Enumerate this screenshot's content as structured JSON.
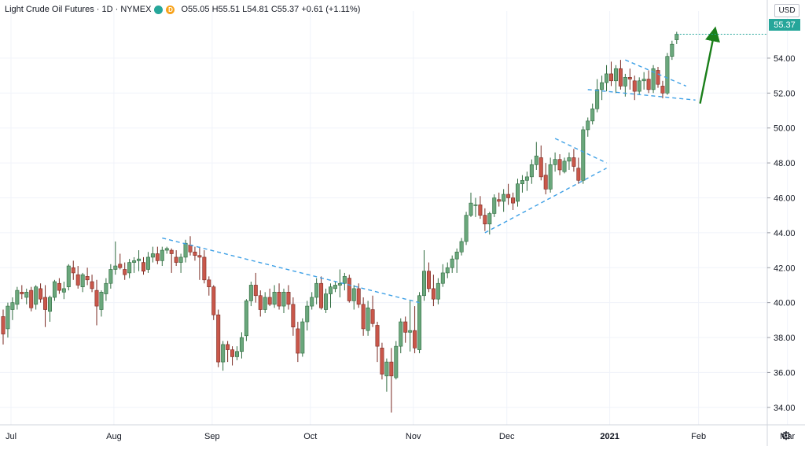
{
  "header": {
    "symbol_title": "Light Crude Oil Futures · 1D · NYMEX",
    "badge_green_label": "",
    "badge_orange_label": "D",
    "ohlc_text": "O55.05 H55.51 L54.81 C55.37 +0.61 (+1.11%)"
  },
  "price_axis": {
    "currency_label": "USD",
    "last_price_label": "55.37"
  },
  "colors": {
    "up": "#26a69a",
    "down": "#ef5350",
    "up_fill": "#6aa77c",
    "down_fill": "#c9574a",
    "trendline": "#3ea0e6",
    "arrow": "#1a7f1a",
    "grid": "#f0f3fa"
  },
  "icons": {
    "settings": "gear-icon"
  },
  "chart_data": {
    "type": "candlestick",
    "title": "Light Crude Oil Futures · 1D · NYMEX",
    "ylim": [
      33.0,
      56.7
    ],
    "y_ticks": [
      34,
      36,
      38,
      40,
      42,
      44,
      46,
      48,
      50,
      52,
      54
    ],
    "y_tick_labels": [
      "34.00",
      "36.00",
      "38.00",
      "40.00",
      "42.00",
      "44.00",
      "46.00",
      "48.00",
      "50.00",
      "52.00",
      "54.00"
    ],
    "x_ticks": [
      {
        "label": "Jul",
        "bar": 0
      },
      {
        "label": "Aug",
        "bar": 22
      },
      {
        "label": "Sep",
        "bar": 43
      },
      {
        "label": "Oct",
        "bar": 64
      },
      {
        "label": "Nov",
        "bar": 86
      },
      {
        "label": "Dec",
        "bar": 106
      },
      {
        "label": "2021",
        "bar": 128
      },
      {
        "label": "Feb",
        "bar": 147
      },
      {
        "label": "Mar",
        "bar": 166
      }
    ],
    "grid": true,
    "last_close": 55.37,
    "ohlc": [
      [
        39.2,
        39.6,
        37.6,
        38.2
      ],
      [
        38.5,
        40.0,
        38.0,
        39.8
      ],
      [
        39.6,
        40.3,
        39.0,
        40.0
      ],
      [
        39.9,
        40.9,
        39.6,
        40.7
      ],
      [
        40.6,
        41.0,
        40.2,
        40.5
      ],
      [
        40.3,
        40.8,
        39.9,
        40.6
      ],
      [
        40.7,
        40.9,
        39.5,
        39.7
      ],
      [
        39.9,
        41.0,
        39.6,
        40.9
      ],
      [
        40.8,
        41.1,
        40.0,
        40.2
      ],
      [
        40.3,
        41.0,
        38.6,
        39.6
      ],
      [
        39.5,
        40.4,
        38.9,
        40.3
      ],
      [
        40.3,
        41.3,
        40.1,
        41.2
      ],
      [
        41.1,
        41.4,
        40.5,
        40.7
      ],
      [
        40.6,
        41.2,
        40.2,
        40.8
      ],
      [
        40.9,
        42.2,
        40.7,
        42.1
      ],
      [
        42.0,
        42.4,
        41.3,
        41.7
      ],
      [
        41.6,
        42.1,
        40.8,
        41.0
      ],
      [
        40.9,
        41.7,
        40.6,
        41.6
      ],
      [
        41.5,
        42.0,
        41.0,
        41.3
      ],
      [
        41.2,
        41.6,
        40.6,
        40.8
      ],
      [
        40.7,
        41.3,
        38.7,
        39.8
      ],
      [
        39.6,
        40.7,
        39.2,
        40.6
      ],
      [
        40.5,
        41.4,
        40.1,
        41.1
      ],
      [
        41.1,
        42.2,
        40.8,
        41.9
      ],
      [
        41.9,
        43.5,
        41.6,
        42.1
      ],
      [
        42.2,
        42.8,
        41.9,
        42.0
      ],
      [
        41.9,
        42.3,
        41.3,
        41.6
      ],
      [
        41.7,
        42.5,
        41.4,
        42.3
      ],
      [
        42.3,
        42.6,
        41.7,
        42.4
      ],
      [
        42.4,
        43.0,
        41.8,
        42.5
      ],
      [
        42.3,
        42.6,
        41.6,
        41.8
      ],
      [
        41.9,
        42.9,
        41.7,
        42.6
      ],
      [
        42.6,
        43.2,
        42.3,
        42.8
      ],
      [
        42.8,
        43.2,
        42.2,
        42.4
      ],
      [
        42.4,
        43.2,
        42.1,
        43.0
      ],
      [
        43.0,
        43.2,
        42.8,
        43.1
      ],
      [
        43.0,
        43.1,
        41.7,
        42.8
      ],
      [
        42.6,
        43.0,
        42.1,
        42.3
      ],
      [
        42.3,
        42.8,
        41.7,
        42.6
      ],
      [
        42.6,
        43.6,
        42.3,
        43.4
      ],
      [
        43.3,
        43.8,
        42.7,
        42.9
      ],
      [
        42.9,
        43.2,
        42.4,
        42.7
      ],
      [
        42.7,
        43.2,
        41.3,
        42.6
      ],
      [
        42.6,
        43.0,
        41.1,
        41.3
      ],
      [
        41.3,
        41.5,
        40.4,
        40.9
      ],
      [
        40.9,
        41.0,
        39.0,
        39.3
      ],
      [
        39.3,
        39.6,
        36.3,
        36.6
      ],
      [
        36.6,
        37.8,
        36.1,
        37.6
      ],
      [
        37.6,
        37.8,
        36.6,
        37.3
      ],
      [
        37.3,
        37.5,
        36.4,
        36.9
      ],
      [
        36.9,
        37.5,
        36.7,
        37.2
      ],
      [
        37.2,
        38.3,
        36.8,
        38.0
      ],
      [
        38.1,
        40.2,
        37.8,
        40.1
      ],
      [
        40.1,
        41.2,
        39.8,
        41.0
      ],
      [
        41.0,
        41.7,
        40.0,
        40.4
      ],
      [
        40.4,
        40.7,
        39.2,
        39.6
      ],
      [
        39.6,
        40.6,
        39.4,
        40.3
      ],
      [
        40.3,
        40.8,
        39.8,
        39.9
      ],
      [
        39.9,
        41.0,
        39.7,
        40.6
      ],
      [
        40.6,
        41.1,
        39.6,
        39.8
      ],
      [
        39.8,
        40.8,
        39.4,
        40.6
      ],
      [
        40.6,
        41.0,
        39.6,
        39.9
      ],
      [
        39.9,
        40.3,
        38.1,
        38.6
      ],
      [
        38.5,
        38.9,
        36.6,
        37.1
      ],
      [
        37.1,
        39.1,
        36.9,
        38.9
      ],
      [
        38.9,
        40.1,
        38.4,
        39.8
      ],
      [
        39.8,
        40.6,
        39.6,
        40.3
      ],
      [
        40.3,
        41.4,
        39.9,
        41.1
      ],
      [
        41.1,
        41.5,
        39.6,
        39.7
      ],
      [
        39.6,
        40.8,
        39.4,
        40.5
      ],
      [
        40.5,
        41.1,
        39.7,
        40.9
      ],
      [
        40.8,
        41.2,
        40.6,
        41.0
      ],
      [
        41.0,
        41.9,
        40.3,
        41.1
      ],
      [
        41.1,
        41.7,
        40.7,
        41.5
      ],
      [
        41.4,
        41.6,
        40.0,
        40.1
      ],
      [
        40.1,
        41.0,
        39.6,
        40.8
      ],
      [
        40.8,
        41.1,
        39.7,
        39.9
      ],
      [
        39.9,
        40.3,
        38.1,
        38.5
      ],
      [
        38.4,
        40.1,
        38.1,
        39.7
      ],
      [
        39.6,
        40.4,
        38.6,
        38.8
      ],
      [
        38.7,
        38.9,
        36.6,
        37.5
      ],
      [
        37.4,
        37.7,
        35.6,
        35.9
      ],
      [
        35.8,
        36.8,
        34.9,
        36.6
      ],
      [
        36.6,
        37.4,
        33.7,
        35.8
      ],
      [
        35.7,
        37.8,
        35.6,
        37.5
      ],
      [
        37.5,
        39.1,
        37.1,
        38.9
      ],
      [
        38.9,
        39.2,
        37.7,
        38.3
      ],
      [
        38.3,
        40.1,
        37.2,
        38.4
      ],
      [
        38.4,
        39.8,
        37.1,
        37.4
      ],
      [
        37.3,
        40.6,
        37.1,
        40.4
      ],
      [
        40.4,
        43.0,
        40.1,
        41.8
      ],
      [
        41.8,
        42.3,
        40.6,
        40.8
      ],
      [
        40.8,
        41.6,
        39.8,
        40.2
      ],
      [
        40.2,
        41.4,
        39.9,
        41.1
      ],
      [
        41.1,
        42.2,
        40.9,
        41.7
      ],
      [
        41.7,
        42.3,
        41.4,
        42.0
      ],
      [
        42.0,
        42.7,
        41.7,
        42.5
      ],
      [
        42.5,
        43.1,
        41.7,
        42.9
      ],
      [
        42.9,
        43.7,
        42.7,
        43.5
      ],
      [
        43.5,
        45.2,
        43.3,
        45.0
      ],
      [
        45.0,
        46.3,
        44.9,
        45.7
      ],
      [
        45.6,
        46.0,
        44.9,
        45.6
      ],
      [
        45.6,
        46.1,
        44.8,
        45.0
      ],
      [
        45.0,
        45.4,
        44.1,
        44.5
      ],
      [
        44.5,
        45.2,
        43.9,
        45.1
      ],
      [
        45.1,
        46.2,
        44.9,
        46.0
      ],
      [
        45.9,
        46.3,
        45.5,
        45.8
      ],
      [
        45.8,
        46.5,
        45.2,
        46.2
      ],
      [
        46.2,
        46.8,
        45.6,
        46.0
      ],
      [
        46.0,
        46.3,
        45.3,
        45.7
      ],
      [
        45.8,
        47.1,
        45.5,
        46.8
      ],
      [
        46.8,
        47.3,
        46.3,
        47.0
      ],
      [
        47.0,
        47.5,
        46.4,
        47.2
      ],
      [
        47.2,
        48.2,
        46.8,
        47.9
      ],
      [
        47.9,
        49.2,
        47.6,
        48.4
      ],
      [
        48.3,
        49.0,
        47.0,
        47.2
      ],
      [
        47.3,
        48.0,
        46.2,
        46.5
      ],
      [
        46.5,
        48.3,
        46.3,
        47.9
      ],
      [
        47.9,
        48.6,
        47.5,
        48.2
      ],
      [
        48.2,
        48.5,
        47.3,
        47.6
      ],
      [
        47.5,
        48.3,
        47.4,
        48.1
      ],
      [
        48.1,
        48.6,
        47.6,
        48.3
      ],
      [
        48.3,
        48.8,
        47.5,
        47.8
      ],
      [
        47.7,
        48.3,
        46.8,
        47.0
      ],
      [
        47.0,
        50.1,
        46.8,
        49.9
      ],
      [
        49.9,
        50.6,
        49.5,
        50.4
      ],
      [
        50.4,
        51.4,
        50.2,
        51.1
      ],
      [
        51.1,
        52.8,
        50.9,
        52.2
      ],
      [
        52.2,
        53.0,
        51.6,
        52.6
      ],
      [
        52.6,
        53.6,
        52.1,
        53.1
      ],
      [
        53.1,
        53.8,
        52.4,
        52.7
      ],
      [
        52.7,
        53.6,
        52.0,
        53.4
      ],
      [
        53.4,
        53.9,
        52.2,
        52.4
      ],
      [
        52.4,
        53.1,
        51.8,
        52.9
      ],
      [
        52.9,
        53.4,
        52.2,
        52.8
      ],
      [
        52.7,
        53.0,
        51.6,
        52.1
      ],
      [
        52.1,
        52.9,
        51.9,
        52.7
      ],
      [
        52.7,
        53.2,
        52.2,
        52.8
      ],
      [
        52.8,
        53.3,
        52.0,
        52.2
      ],
      [
        52.2,
        53.6,
        52.0,
        53.4
      ],
      [
        53.3,
        53.5,
        52.3,
        52.5
      ],
      [
        52.4,
        52.7,
        51.7,
        52.0
      ],
      [
        52.0,
        54.3,
        51.9,
        54.1
      ],
      [
        54.1,
        55.0,
        53.9,
        54.8
      ],
      [
        55.05,
        55.51,
        54.81,
        55.37
      ]
    ],
    "annotations": [
      {
        "type": "trendline",
        "style": "dashed",
        "color": "#3ea0e6",
        "from": {
          "bar": 34,
          "price": 43.7
        },
        "to": {
          "bar": 89,
          "price": 40.0
        }
      },
      {
        "type": "trendline",
        "style": "dashed",
        "color": "#3ea0e6",
        "from": {
          "bar": 103,
          "price": 44.0
        },
        "to": {
          "bar": 129,
          "price": 47.7
        }
      },
      {
        "type": "trendline",
        "style": "dashed",
        "color": "#3ea0e6",
        "from": {
          "bar": 118,
          "price": 49.4
        },
        "to": {
          "bar": 129,
          "price": 48.0
        }
      },
      {
        "type": "trendline",
        "style": "dashed",
        "color": "#3ea0e6",
        "from": {
          "bar": 133,
          "price": 53.9
        },
        "to": {
          "bar": 146,
          "price": 52.4
        }
      },
      {
        "type": "trendline",
        "style": "dashed",
        "color": "#3ea0e6",
        "from": {
          "bar": 125,
          "price": 52.2
        },
        "to": {
          "bar": 148,
          "price": 51.6
        }
      },
      {
        "type": "arrow",
        "color": "#1a7f1a",
        "from": {
          "bar": 149,
          "price": 51.4
        },
        "to": {
          "bar": 152,
          "price": 55.4
        }
      }
    ]
  }
}
